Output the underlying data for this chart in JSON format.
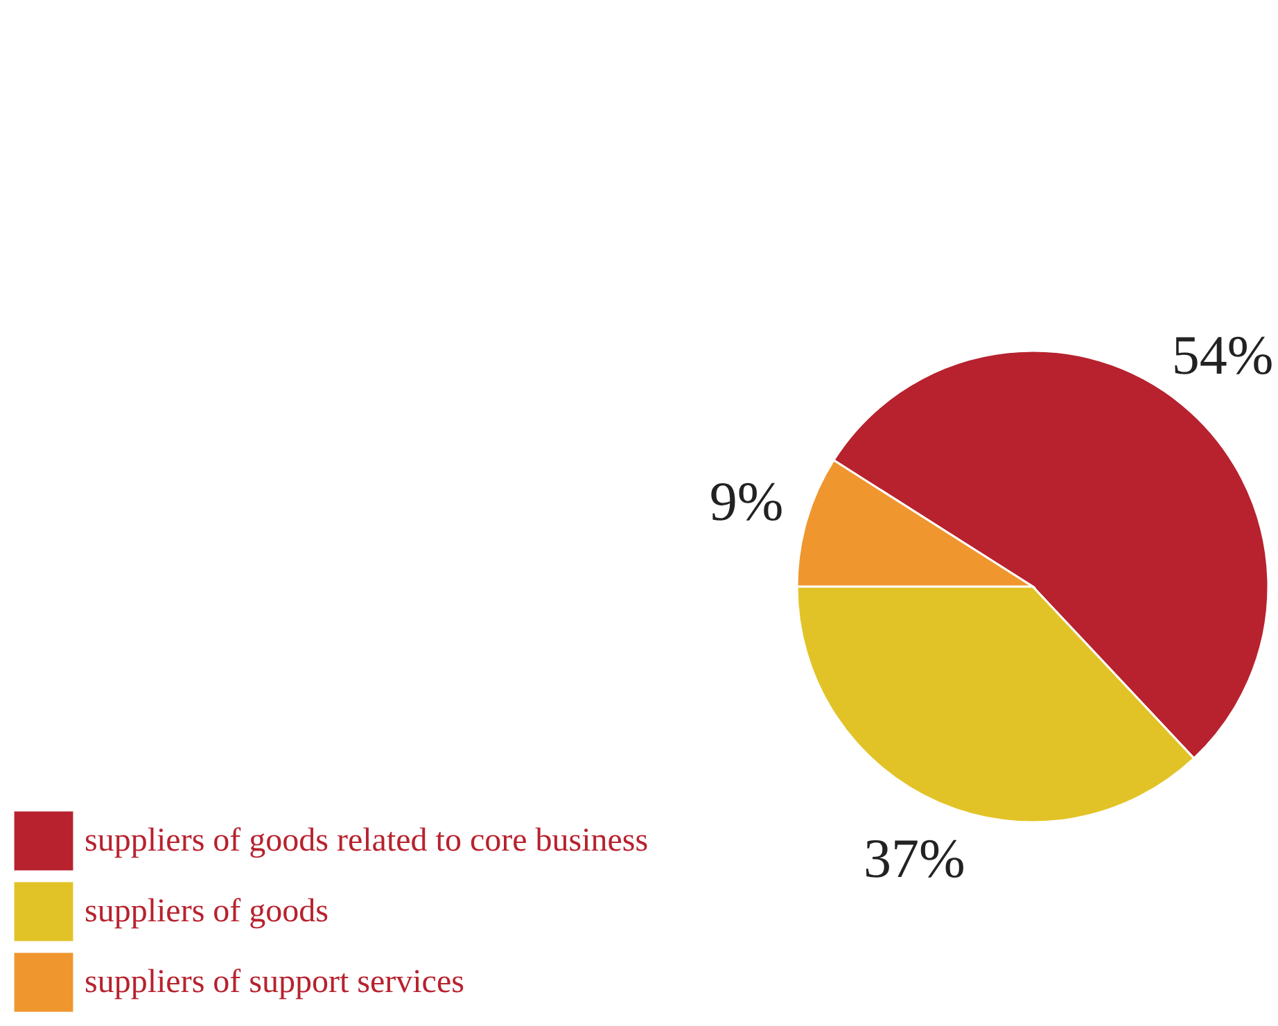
{
  "chart_data": {
    "type": "pie",
    "categories": [
      "suppliers of goods related to core business",
      "suppliers of goods",
      "suppliers of support services"
    ],
    "values": [
      54,
      37,
      9
    ],
    "colors": [
      "#b7222e",
      "#e2c327",
      "#f0962e"
    ],
    "value_labels": [
      "54%",
      "37%",
      "9%"
    ],
    "legend": "bottom left"
  }
}
